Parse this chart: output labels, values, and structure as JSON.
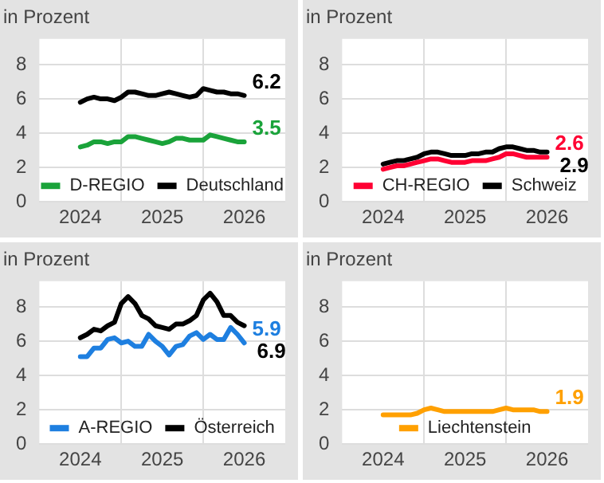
{
  "chart_data": [
    {
      "type": "line",
      "ylabel": "in Prozent",
      "x": [
        "2024-01",
        "2024-02",
        "2024-03",
        "2024-04",
        "2024-05",
        "2024-06",
        "2024-07",
        "2024-08",
        "2024-09",
        "2024-10",
        "2024-11",
        "2024-12",
        "2025-01",
        "2025-02",
        "2025-03",
        "2025-04",
        "2025-05",
        "2025-06",
        "2025-07",
        "2025-08",
        "2025-09",
        "2025-10",
        "2025-11",
        "2025-12",
        "2026-01"
      ],
      "series": [
        {
          "name": "D-REGIO",
          "color": "#1aa33a",
          "values": [
            3.2,
            3.3,
            3.5,
            3.5,
            3.4,
            3.5,
            3.5,
            3.8,
            3.8,
            3.7,
            3.6,
            3.5,
            3.4,
            3.5,
            3.7,
            3.7,
            3.6,
            3.6,
            3.6,
            3.9,
            3.8,
            3.7,
            3.6,
            3.5,
            3.5
          ],
          "value_labels": [
            null,
            null,
            null,
            null,
            null,
            null,
            null,
            null,
            null,
            null,
            null,
            null,
            null,
            null,
            null,
            null,
            null,
            null,
            null,
            null,
            null,
            null,
            null,
            null,
            "3.5"
          ]
        },
        {
          "name": "Deutschland",
          "color": "#000000",
          "values": [
            5.8,
            6.0,
            6.1,
            6.0,
            6.0,
            5.9,
            6.1,
            6.4,
            6.4,
            6.3,
            6.2,
            6.2,
            6.3,
            6.4,
            6.3,
            6.2,
            6.1,
            6.2,
            6.6,
            6.5,
            6.4,
            6.4,
            6.3,
            6.3,
            6.2
          ],
          "value_labels": [
            null,
            null,
            null,
            null,
            null,
            null,
            null,
            null,
            null,
            null,
            null,
            null,
            null,
            null,
            null,
            null,
            null,
            null,
            null,
            null,
            null,
            null,
            null,
            null,
            "6.2"
          ]
        }
      ],
      "xlim": [
        "2023-07",
        "2026-07"
      ],
      "xticks": [
        {
          "value": "2024-01",
          "label": "2024"
        },
        {
          "value": "2024-07",
          "label": null
        },
        {
          "value": "2025-01",
          "label": "2025"
        },
        {
          "value": "2025-07",
          "label": null
        },
        {
          "value": "2026-01",
          "label": "2026"
        }
      ],
      "ylim": [
        0,
        9.5
      ],
      "yticks": [
        0,
        2,
        4,
        6,
        8
      ],
      "grid": true,
      "legend": "bottom",
      "marker": "none",
      "line_style": "solid"
    },
    {
      "type": "line",
      "ylabel": "in Prozent",
      "x": [
        "2024-01",
        "2024-02",
        "2024-03",
        "2024-04",
        "2024-05",
        "2024-06",
        "2024-07",
        "2024-08",
        "2024-09",
        "2024-10",
        "2024-11",
        "2024-12",
        "2025-01",
        "2025-02",
        "2025-03",
        "2025-04",
        "2025-05",
        "2025-06",
        "2025-07",
        "2025-08",
        "2025-09",
        "2025-10",
        "2025-11",
        "2025-12",
        "2026-01"
      ],
      "series": [
        {
          "name": "CH-REGIO",
          "color": "#ff0033",
          "values": [
            1.9,
            2.0,
            2.1,
            2.1,
            2.2,
            2.3,
            2.4,
            2.5,
            2.5,
            2.4,
            2.3,
            2.3,
            2.3,
            2.4,
            2.4,
            2.4,
            2.5,
            2.6,
            2.8,
            2.8,
            2.7,
            2.6,
            2.6,
            2.6,
            2.6
          ],
          "value_labels": [
            null,
            null,
            null,
            null,
            null,
            null,
            null,
            null,
            null,
            null,
            null,
            null,
            null,
            null,
            null,
            null,
            null,
            null,
            null,
            null,
            null,
            null,
            null,
            null,
            "2.6"
          ]
        },
        {
          "name": "Schweiz",
          "color": "#000000",
          "values": [
            2.2,
            2.3,
            2.4,
            2.4,
            2.5,
            2.6,
            2.8,
            2.9,
            2.9,
            2.8,
            2.7,
            2.7,
            2.7,
            2.8,
            2.8,
            2.9,
            2.9,
            3.1,
            3.2,
            3.2,
            3.1,
            3.0,
            3.0,
            2.9,
            2.9
          ],
          "value_labels": [
            null,
            null,
            null,
            null,
            null,
            null,
            null,
            null,
            null,
            null,
            null,
            null,
            null,
            null,
            null,
            null,
            null,
            null,
            null,
            null,
            null,
            null,
            null,
            null,
            "2.9"
          ]
        }
      ],
      "xlim": [
        "2023-07",
        "2026-07"
      ],
      "xticks": [
        {
          "value": "2024-01",
          "label": "2024"
        },
        {
          "value": "2024-07",
          "label": null
        },
        {
          "value": "2025-01",
          "label": "2025"
        },
        {
          "value": "2025-07",
          "label": null
        },
        {
          "value": "2026-01",
          "label": "2026"
        }
      ],
      "ylim": [
        0,
        9.5
      ],
      "yticks": [
        0,
        2,
        4,
        6,
        8
      ],
      "grid": true,
      "legend": "bottom",
      "marker": "none",
      "line_style": "solid"
    },
    {
      "type": "line",
      "ylabel": "in Prozent",
      "x": [
        "2024-01",
        "2024-02",
        "2024-03",
        "2024-04",
        "2024-05",
        "2024-06",
        "2024-07",
        "2024-08",
        "2024-09",
        "2024-10",
        "2024-11",
        "2024-12",
        "2025-01",
        "2025-02",
        "2025-03",
        "2025-04",
        "2025-05",
        "2025-06",
        "2025-07",
        "2025-08",
        "2025-09",
        "2025-10",
        "2025-11",
        "2025-12",
        "2026-01"
      ],
      "series": [
        {
          "name": "A-REGIO",
          "color": "#1e7fe0",
          "values": [
            5.1,
            5.1,
            5.6,
            5.6,
            6.1,
            6.2,
            5.9,
            6.0,
            5.7,
            5.7,
            6.4,
            6.0,
            5.7,
            5.2,
            5.7,
            5.8,
            6.3,
            6.5,
            6.1,
            6.4,
            6.1,
            6.1,
            6.8,
            6.4,
            5.9
          ],
          "value_labels": [
            null,
            null,
            null,
            null,
            null,
            null,
            null,
            null,
            null,
            null,
            null,
            null,
            null,
            null,
            null,
            null,
            null,
            null,
            null,
            null,
            null,
            null,
            null,
            null,
            "5.9"
          ]
        },
        {
          "name": "Österreich",
          "color": "#000000",
          "values": [
            6.2,
            6.4,
            6.7,
            6.6,
            6.9,
            7.1,
            8.2,
            8.6,
            8.2,
            7.5,
            7.3,
            6.9,
            6.8,
            6.7,
            7.0,
            7.0,
            7.2,
            7.5,
            8.4,
            8.8,
            8.3,
            7.5,
            7.5,
            7.1,
            6.9
          ],
          "value_labels": [
            null,
            null,
            null,
            null,
            null,
            null,
            null,
            null,
            null,
            null,
            null,
            null,
            null,
            null,
            null,
            null,
            null,
            null,
            null,
            null,
            null,
            null,
            null,
            null,
            "6.9"
          ]
        }
      ],
      "xlim": [
        "2023-07",
        "2026-07"
      ],
      "xticks": [
        {
          "value": "2024-01",
          "label": "2024"
        },
        {
          "value": "2024-07",
          "label": null
        },
        {
          "value": "2025-01",
          "label": "2025"
        },
        {
          "value": "2025-07",
          "label": null
        },
        {
          "value": "2026-01",
          "label": "2026"
        }
      ],
      "ylim": [
        0,
        9.5
      ],
      "yticks": [
        0,
        2,
        4,
        6,
        8
      ],
      "grid": true,
      "legend": "bottom",
      "marker": "none",
      "line_style": "solid"
    },
    {
      "type": "line",
      "ylabel": "in Prozent",
      "x": [
        "2024-01",
        "2024-02",
        "2024-03",
        "2024-04",
        "2024-05",
        "2024-06",
        "2024-07",
        "2024-08",
        "2024-09",
        "2024-10",
        "2024-11",
        "2024-12",
        "2025-01",
        "2025-02",
        "2025-03",
        "2025-04",
        "2025-05",
        "2025-06",
        "2025-07",
        "2025-08",
        "2025-09",
        "2025-10",
        "2025-11",
        "2025-12",
        "2026-01"
      ],
      "series": [
        {
          "name": "Liechtenstein",
          "color": "#ffa000",
          "values": [
            1.7,
            1.7,
            1.7,
            1.7,
            1.7,
            1.8,
            2.0,
            2.1,
            2.0,
            1.9,
            1.9,
            1.9,
            1.9,
            1.9,
            1.9,
            1.9,
            1.9,
            2.0,
            2.1,
            2.0,
            2.0,
            2.0,
            2.0,
            1.9,
            1.9
          ],
          "value_labels": [
            null,
            null,
            null,
            null,
            null,
            null,
            null,
            null,
            null,
            null,
            null,
            null,
            null,
            null,
            null,
            null,
            null,
            null,
            null,
            null,
            null,
            null,
            null,
            null,
            "1.9"
          ]
        }
      ],
      "xlim": [
        "2023-07",
        "2026-07"
      ],
      "xticks": [
        {
          "value": "2024-01",
          "label": "2024"
        },
        {
          "value": "2024-07",
          "label": null
        },
        {
          "value": "2025-01",
          "label": "2025"
        },
        {
          "value": "2025-07",
          "label": null
        },
        {
          "value": "2026-01",
          "label": "2026"
        }
      ],
      "ylim": [
        0,
        9.5
      ],
      "yticks": [
        0,
        2,
        4,
        6,
        8
      ],
      "grid": true,
      "legend": "bottom",
      "marker": "none",
      "line_style": "solid"
    }
  ]
}
